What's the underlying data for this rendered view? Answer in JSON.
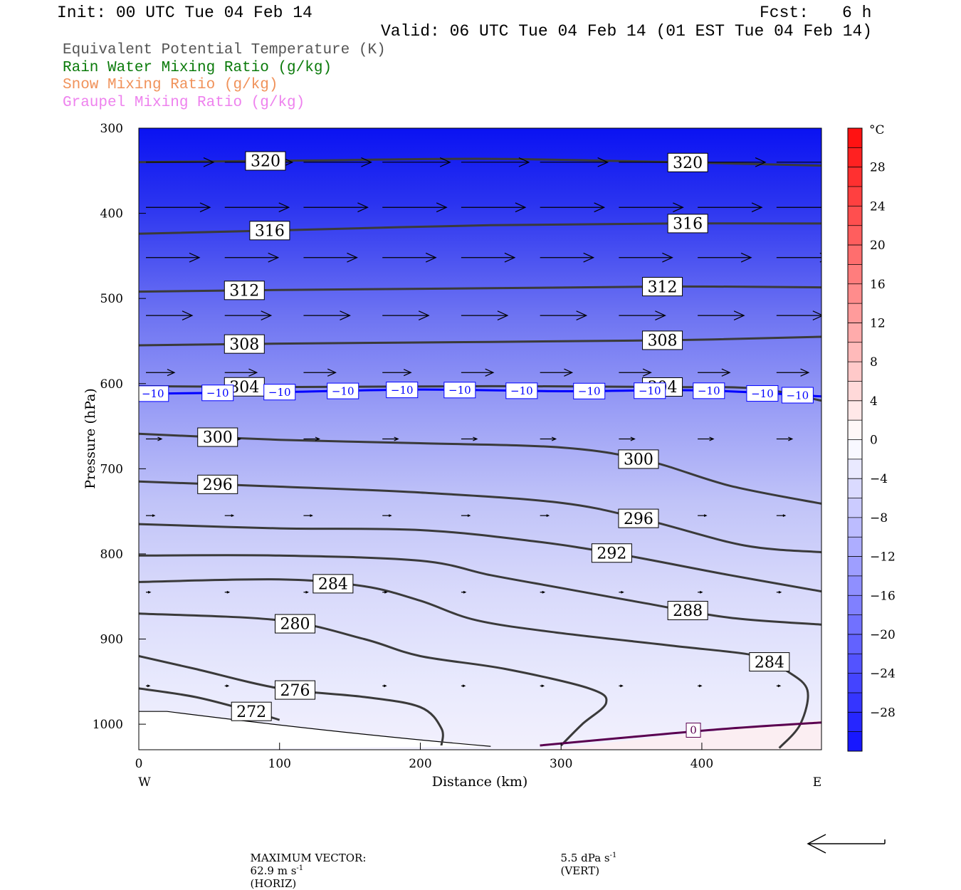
{
  "header": {
    "init": "Init: 00 UTC Tue 04 Feb 14",
    "fcst_label": "Fcst:",
    "fcst_value": "6 h",
    "valid": "Valid: 06 UTC Tue 04 Feb 14 (01 EST Tue 04 Feb 14)"
  },
  "legend": [
    {
      "text": "Equivalent Potential Temperature (K)",
      "color": "#555555"
    },
    {
      "text": "Rain Water Mixing Ratio (g/kg)",
      "color": "#0a7a0a"
    },
    {
      "text": "Snow Mixing Ratio (g/kg)",
      "color": "#f0925a"
    },
    {
      "text": "Graupel Mixing Ratio (g/kg)",
      "color": "#ee82ee"
    }
  ],
  "footer": {
    "max_vector_label": "MAXIMUM VECTOR:",
    "horiz": "62.9 m s",
    "horiz_sup": "-1",
    "horiz_tag": "(HORIZ)",
    "vert": "5.5 dPa s",
    "vert_sup": "-1",
    "vert_tag": "(VERT)"
  },
  "chart_data": {
    "type": "contour",
    "xlabel": "Distance (km)",
    "ylabel": "Pressure (hPa)",
    "xlim": [
      0,
      485
    ],
    "ylim": [
      1030,
      300
    ],
    "x_ticks": [
      0,
      100,
      200,
      300,
      400
    ],
    "y_ticks": [
      300,
      400,
      500,
      600,
      700,
      800,
      900,
      1000
    ],
    "x_end_labels": {
      "left": "W",
      "right": "E"
    },
    "colorbar": {
      "unit": "°C",
      "range": [
        -32,
        32
      ],
      "labels": [
        28,
        24,
        20,
        16,
        12,
        8,
        4,
        0,
        -4,
        -8,
        -12,
        -16,
        -20,
        -24,
        -28
      ]
    },
    "theta_e_contours": [
      {
        "value": 320,
        "label": "320",
        "points": [
          [
            0,
            340
          ],
          [
            120,
            338
          ],
          [
            250,
            336
          ],
          [
            380,
            340
          ],
          [
            485,
            344
          ]
        ]
      },
      {
        "value": 316,
        "label": "316",
        "points": [
          [
            0,
            424
          ],
          [
            100,
            420
          ],
          [
            250,
            414
          ],
          [
            380,
            412
          ],
          [
            485,
            412
          ]
        ]
      },
      {
        "value": 312,
        "label": "312",
        "points": [
          [
            0,
            492
          ],
          [
            100,
            490
          ],
          [
            250,
            488
          ],
          [
            380,
            486
          ],
          [
            485,
            487
          ]
        ]
      },
      {
        "value": 308,
        "label": "308",
        "points": [
          [
            0,
            555
          ],
          [
            100,
            553
          ],
          [
            250,
            551
          ],
          [
            380,
            549
          ],
          [
            485,
            545
          ]
        ]
      },
      {
        "value": 304,
        "label": "304",
        "points": [
          [
            0,
            603
          ],
          [
            100,
            604
          ],
          [
            250,
            603
          ],
          [
            380,
            604
          ],
          [
            440,
            606
          ],
          [
            485,
            620
          ]
        ]
      },
      {
        "value": 300,
        "label": "300",
        "points": [
          [
            0,
            659
          ],
          [
            100,
            666
          ],
          [
            200,
            670
          ],
          [
            300,
            675
          ],
          [
            360,
            690
          ],
          [
            420,
            720
          ],
          [
            485,
            741
          ]
        ]
      },
      {
        "value": 296,
        "label": "296",
        "points": [
          [
            0,
            715
          ],
          [
            100,
            721
          ],
          [
            200,
            728
          ],
          [
            300,
            740
          ],
          [
            360,
            760
          ],
          [
            430,
            790
          ],
          [
            485,
            798
          ]
        ]
      },
      {
        "value": 292,
        "label": "292",
        "points": [
          [
            0,
            765
          ],
          [
            100,
            770
          ],
          [
            200,
            772
          ],
          [
            280,
            785
          ],
          [
            340,
            800
          ],
          [
            420,
            825
          ],
          [
            485,
            844
          ]
        ]
      },
      {
        "value": 288,
        "label": "288",
        "points": [
          [
            0,
            802
          ],
          [
            100,
            802
          ],
          [
            200,
            808
          ],
          [
            250,
            825
          ],
          [
            300,
            840
          ],
          [
            360,
            858
          ],
          [
            420,
            875
          ],
          [
            485,
            883
          ]
        ]
      },
      {
        "value": 284,
        "label": "284",
        "points": [
          [
            0,
            833
          ],
          [
            100,
            830
          ],
          [
            160,
            838
          ],
          [
            200,
            855
          ],
          [
            240,
            878
          ],
          [
            300,
            893
          ],
          [
            380,
            908
          ],
          [
            440,
            920
          ],
          [
            460,
            937
          ],
          [
            475,
            960
          ],
          [
            470,
            1000
          ],
          [
            455,
            1028
          ]
        ]
      },
      {
        "value": 280,
        "label": "280",
        "points": [
          [
            0,
            870
          ],
          [
            100,
            878
          ],
          [
            160,
            900
          ],
          [
            200,
            920
          ],
          [
            260,
            935
          ],
          [
            320,
            958
          ],
          [
            332,
            975
          ],
          [
            315,
            1000
          ],
          [
            300,
            1025
          ]
        ]
      },
      {
        "value": 276,
        "label": "276",
        "points": [
          [
            0,
            920
          ],
          [
            40,
            935
          ],
          [
            100,
            958
          ],
          [
            160,
            968
          ],
          [
            200,
            980
          ],
          [
            215,
            1005
          ],
          [
            215,
            1025
          ]
        ]
      },
      {
        "value": 272,
        "label": "272",
        "points": [
          [
            0,
            958
          ],
          [
            40,
            968
          ],
          [
            80,
            985
          ],
          [
            100,
            995
          ]
        ]
      }
    ],
    "temperature_contours": [
      {
        "value": -10,
        "label": "−10",
        "color": "#0000ff",
        "points": [
          [
            0,
            612
          ],
          [
            100,
            610
          ],
          [
            200,
            607
          ],
          [
            300,
            609
          ],
          [
            400,
            608
          ],
          [
            485,
            615
          ]
        ]
      },
      {
        "value": 0,
        "label": "0",
        "color": "#5a0050",
        "points": [
          [
            285,
            1025
          ],
          [
            350,
            1015
          ],
          [
            420,
            1005
          ],
          [
            485,
            998
          ]
        ]
      }
    ],
    "wind_vectors": {
      "levels_hpa": [
        340,
        393,
        452,
        520,
        587,
        665,
        755,
        845,
        955
      ],
      "x_km": [
        0,
        56,
        112,
        168,
        224,
        280,
        336,
        392,
        448
      ],
      "lengths_px": [
        [
          95,
          95,
          95,
          95,
          95,
          95,
          95,
          95,
          95
        ],
        [
          90,
          90,
          90,
          90,
          90,
          90,
          90,
          90,
          90
        ],
        [
          75,
          75,
          75,
          75,
          75,
          75,
          75,
          75,
          75
        ],
        [
          65,
          65,
          65,
          65,
          65,
          65,
          65,
          65,
          65
        ],
        [
          40,
          45,
          45,
          40,
          45,
          45,
          45,
          45,
          45
        ],
        [
          22,
          22,
          22,
          22,
          22,
          22,
          22,
          22,
          22
        ],
        [
          12,
          12,
          12,
          12,
          12,
          12,
          12,
          12,
          12
        ],
        [
          6,
          6,
          6,
          6,
          6,
          6,
          6,
          6,
          6
        ],
        [
          5,
          5,
          5,
          5,
          5,
          5,
          5,
          5,
          5
        ]
      ]
    }
  }
}
